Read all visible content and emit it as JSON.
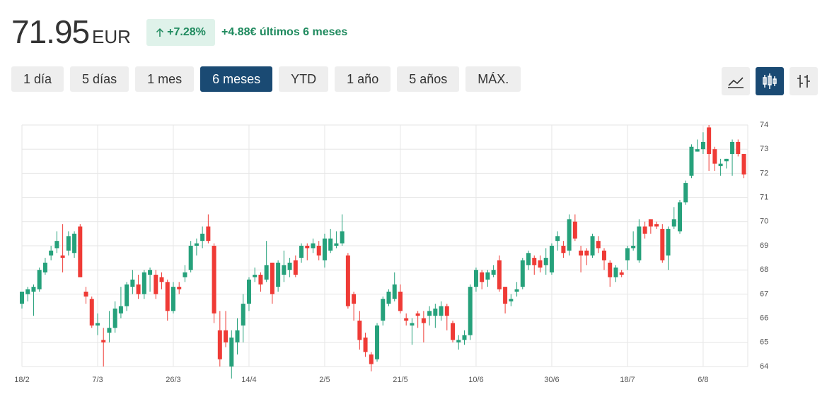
{
  "header": {
    "price": "71.95",
    "currency": "EUR",
    "change_pct": "+7.28%",
    "change_text": "+4.88€ últimos 6 meses"
  },
  "ranges": {
    "items": [
      "1 día",
      "5 días",
      "1 mes",
      "6 meses",
      "YTD",
      "1 año",
      "5 años",
      "MÁX."
    ],
    "active": 3
  },
  "chart_data": {
    "type": "candlestick",
    "categories": [
      "18/2",
      null,
      null,
      null,
      null,
      null,
      null,
      null,
      null,
      null,
      null,
      null,
      null,
      "7/3",
      null,
      null,
      null,
      null,
      null,
      null,
      null,
      null,
      null,
      null,
      null,
      null,
      "26/3",
      null,
      null,
      null,
      null,
      null,
      null,
      null,
      null,
      null,
      null,
      null,
      null,
      "14/4",
      null,
      null,
      null,
      null,
      null,
      null,
      null,
      null,
      null,
      null,
      null,
      null,
      "2/5",
      null,
      null,
      null,
      null,
      null,
      null,
      null,
      null,
      null,
      null,
      null,
      null,
      "21/5",
      null,
      null,
      null,
      null,
      null,
      null,
      null,
      null,
      null,
      null,
      null,
      null,
      "10/6",
      null,
      null,
      null,
      null,
      null,
      null,
      null,
      null,
      null,
      null,
      null,
      null,
      "30/6",
      null,
      null,
      null,
      null,
      null,
      null,
      null,
      null,
      null,
      null,
      null,
      null,
      "18/7",
      null,
      null,
      null,
      null,
      null,
      null,
      null,
      null,
      null,
      null,
      null,
      null,
      "6/8",
      null,
      null,
      null,
      null,
      null,
      null,
      null
    ],
    "open": [
      66.6,
      67.0,
      67.1,
      67.2,
      67.9,
      68.6,
      68.9,
      68.6,
      68.8,
      68.7,
      69.8,
      67.1,
      66.8,
      65.7,
      65.1,
      65.4,
      65.6,
      66.2,
      66.5,
      67.3,
      67.4,
      67.0,
      67.8,
      67.8,
      67.7,
      67.5,
      66.3,
      67.3,
      67.7,
      68.0,
      69.0,
      69.2,
      69.8,
      69.0,
      65.5,
      65.5,
      64.0,
      65.0,
      65.7,
      66.6,
      67.7,
      67.8,
      67.6,
      68.3,
      67.3,
      67.8,
      68.0,
      68.4,
      68.5,
      69.0,
      68.9,
      69.0,
      68.4,
      68.8,
      69.0,
      69.1,
      68.6,
      67.0,
      65.9,
      65.2,
      64.5,
      64.3,
      65.9,
      66.6,
      66.8,
      67.1,
      66.0,
      65.7,
      66.2,
      66.0,
      66.1,
      66.1,
      66.1,
      66.5,
      65.8,
      65.0,
      65.1,
      65.3,
      67.3,
      67.9,
      67.6,
      67.8,
      68.4,
      67.3,
      66.7,
      67.1,
      67.3,
      68.2,
      68.5,
      68.4,
      68.2,
      67.9,
      69.2,
      69.0,
      68.8,
      70.0,
      68.8,
      68.8,
      68.6,
      69.2,
      68.8,
      68.3,
      67.7,
      67.9,
      68.4,
      68.9,
      68.4,
      69.8,
      70.1,
      69.9,
      69.7,
      68.6,
      69.8,
      69.6,
      70.8,
      71.9,
      72.9,
      73.0,
      73.9,
      73.0,
      72.3,
      72.5,
      72.8,
      73.3,
      72.8
    ],
    "high": [
      67.1,
      67.3,
      67.4,
      68.1,
      68.5,
      69.0,
      69.6,
      69.9,
      69.6,
      69.6,
      69.9,
      67.3,
      66.9,
      66.2,
      65.6,
      66.3,
      66.7,
      67.3,
      67.5,
      68.0,
      67.8,
      68.0,
      68.1,
      68.0,
      67.9,
      67.6,
      67.5,
      67.5,
      68.2,
      69.2,
      69.3,
      69.8,
      70.3,
      69.1,
      66.3,
      66.3,
      65.5,
      66.0,
      67.0,
      67.7,
      68.1,
      67.9,
      69.2,
      68.3,
      68.4,
      68.8,
      68.5,
      68.6,
      69.1,
      69.1,
      69.3,
      69.2,
      69.5,
      69.7,
      69.6,
      70.3,
      68.7,
      67.1,
      66.3,
      65.4,
      64.6,
      65.8,
      66.9,
      67.2,
      67.9,
      67.4,
      66.2,
      66.0,
      66.3,
      66.3,
      66.5,
      66.6,
      66.7,
      66.6,
      65.9,
      65.3,
      65.5,
      67.4,
      68.1,
      68.0,
      68.0,
      68.2,
      68.6,
      67.3,
      67.0,
      67.5,
      68.5,
      68.8,
      68.6,
      68.6,
      68.9,
      69.1,
      69.6,
      69.2,
      70.3,
      70.3,
      69.0,
      68.9,
      69.5,
      69.4,
      68.9,
      68.4,
      68.2,
      68.0,
      69.0,
      69.6,
      70.1,
      70.0,
      70.1,
      70.0,
      69.9,
      69.8,
      70.6,
      70.9,
      71.7,
      73.2,
      73.4,
      73.7,
      74.0,
      73.1,
      72.6,
      72.6,
      73.4,
      73.4,
      72.8
    ],
    "low": [
      66.4,
      66.7,
      66.1,
      67.1,
      67.8,
      68.4,
      68.7,
      67.9,
      68.6,
      68.5,
      67.7,
      66.6,
      65.6,
      65.3,
      64.0,
      65.0,
      65.4,
      66.0,
      66.3,
      67.0,
      66.8,
      66.8,
      67.1,
      66.8,
      67.2,
      65.9,
      66.2,
      67.0,
      67.5,
      67.9,
      68.6,
      68.9,
      69.1,
      65.8,
      64.0,
      64.8,
      63.5,
      64.5,
      65.0,
      66.3,
      67.5,
      67.1,
      67.5,
      66.6,
      67.1,
      67.5,
      67.7,
      67.7,
      68.3,
      68.4,
      68.7,
      68.4,
      68.1,
      68.7,
      68.9,
      69.0,
      66.4,
      65.9,
      64.7,
      64.4,
      63.8,
      64.2,
      65.7,
      66.5,
      66.7,
      66.2,
      65.7,
      64.9,
      65.6,
      65.0,
      65.7,
      65.6,
      65.9,
      65.5,
      65.0,
      64.7,
      64.9,
      65.1,
      67.1,
      67.2,
      67.3,
      67.7,
      67.1,
      66.2,
      66.5,
      66.9,
      67.2,
      68.0,
      67.8,
      67.9,
      67.8,
      67.8,
      68.8,
      68.5,
      68.6,
      69.2,
      67.9,
      68.2,
      68.5,
      68.7,
      68.0,
      67.3,
      67.5,
      67.7,
      68.0,
      68.8,
      68.3,
      69.3,
      69.5,
      69.7,
      68.3,
      68.0,
      69.7,
      69.5,
      70.7,
      71.8,
      72.9,
      72.8,
      72.1,
      72.1,
      71.9,
      72.2,
      71.9,
      72.7,
      71.8
    ],
    "close": [
      67.1,
      67.2,
      67.3,
      68.0,
      68.3,
      68.8,
      69.2,
      68.5,
      69.4,
      69.5,
      67.7,
      66.9,
      65.7,
      65.8,
      65.0,
      65.6,
      66.4,
      66.5,
      67.4,
      67.6,
      67.0,
      67.9,
      68.0,
      67.0,
      67.5,
      66.3,
      67.3,
      67.2,
      67.9,
      69.0,
      69.1,
      69.5,
      69.2,
      66.2,
      64.3,
      65.0,
      65.2,
      65.5,
      66.6,
      67.6,
      67.8,
      67.4,
      68.2,
      67.0,
      68.3,
      68.2,
      68.3,
      67.8,
      69.0,
      68.9,
      69.1,
      68.6,
      69.3,
      69.3,
      69.1,
      69.6,
      66.5,
      66.6,
      65.1,
      64.6,
      64.1,
      65.7,
      66.8,
      67.1,
      67.4,
      66.3,
      65.9,
      65.8,
      66.1,
      65.8,
      66.3,
      66.4,
      66.5,
      66.1,
      65.1,
      65.1,
      65.3,
      67.3,
      68.0,
      67.5,
      67.9,
      68.0,
      67.2,
      66.6,
      66.8,
      67.2,
      68.4,
      68.7,
      68.2,
      68.1,
      68.5,
      69.0,
      69.4,
      68.7,
      70.1,
      69.3,
      68.6,
      68.6,
      69.4,
      68.9,
      68.4,
      67.7,
      68.1,
      67.8,
      68.9,
      69.0,
      69.8,
      69.5,
      69.8,
      69.8,
      68.4,
      69.7,
      70.1,
      70.8,
      71.6,
      73.1,
      73.0,
      73.3,
      72.8,
      72.4,
      72.4,
      72.6,
      73.3,
      72.8,
      71.95
    ],
    "up_color": "#26a17b",
    "down_color": "#ef3b36",
    "ylim": [
      64,
      74
    ],
    "yticks": [
      64,
      65,
      66,
      67,
      68,
      69,
      70,
      71,
      72,
      73,
      74
    ],
    "grid": true
  }
}
